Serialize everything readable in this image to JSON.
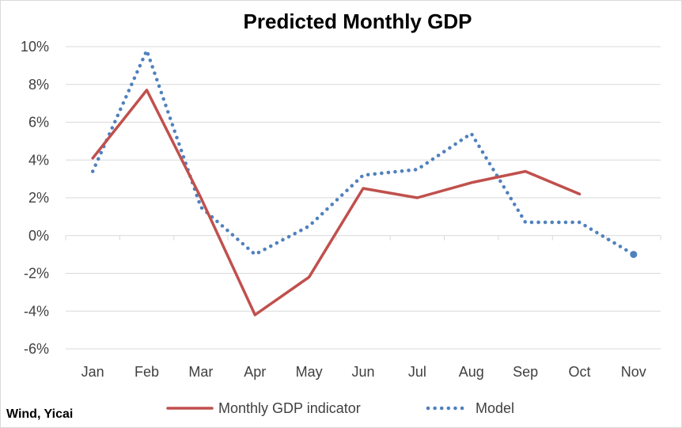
{
  "chart_data": {
    "type": "line",
    "title": "Predicted Monthly GDP",
    "categories": [
      "Jan",
      "Feb",
      "Mar",
      "Apr",
      "May",
      "Jun",
      "Jul",
      "Aug",
      "Sep",
      "Oct",
      "Nov"
    ],
    "y_ticks": [
      "10%",
      "8%",
      "6%",
      "4%",
      "2%",
      "0%",
      "-2%",
      "-4%",
      "-6%"
    ],
    "ylim": [
      -6,
      10
    ],
    "y_unit": "%",
    "grid": true,
    "legend_position": "bottom",
    "series": [
      {
        "name": "Monthly GDP indicator",
        "color": "#c0504d",
        "style": "solid",
        "values": [
          4.1,
          7.7,
          2.0,
          -4.2,
          -2.2,
          2.5,
          2.0,
          2.8,
          3.4,
          2.2,
          null
        ]
      },
      {
        "name": "Model",
        "color": "#4f81bd",
        "style": "dotted",
        "values": [
          3.4,
          9.8,
          1.5,
          -1.0,
          0.5,
          3.2,
          3.5,
          5.4,
          0.7,
          0.7,
          -1.0
        ],
        "end_marker": true
      }
    ]
  },
  "source": "Wind, Yicai"
}
